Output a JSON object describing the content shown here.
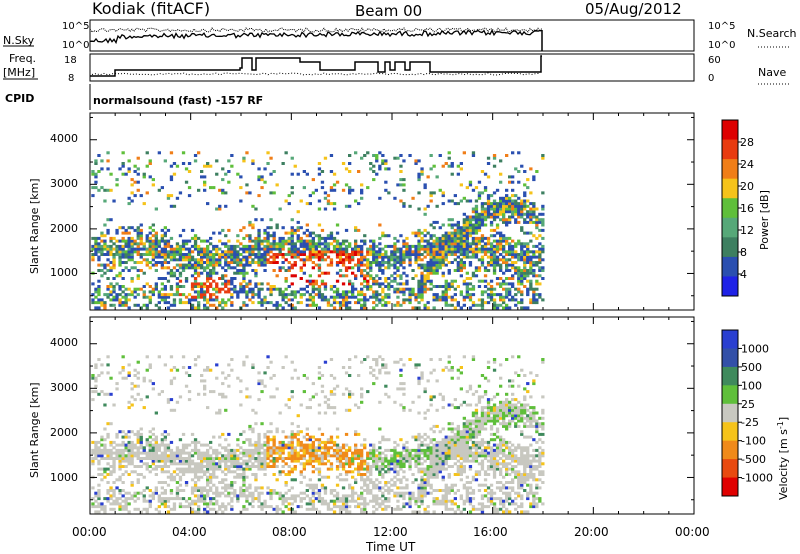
{
  "header": {
    "station": "Kodiak (fitACF)",
    "beam": "Beam 00",
    "date": "05/Aug/2012"
  },
  "panels": {
    "nsky_label": "N.Sky",
    "nsearch_label": "N.Search",
    "nsky_ticks": [
      "10^5",
      "10^0"
    ],
    "nsky_right_ticks": [
      "10^5",
      "10^0"
    ],
    "freq_label_1": "Freq.",
    "freq_label_2": "[MHz]",
    "freq_ticks": [
      "18",
      "8"
    ],
    "nave_ticks": [
      "60",
      "0"
    ],
    "nave_label": "Nave",
    "cpid_label": "CPID",
    "cpid_text": "normalsound (fast) -157 RF"
  },
  "colors": {
    "power_scale": [
      "#1f22e6",
      "#2a4fb0",
      "#3d7f60",
      "#56a878",
      "#5fbf3a",
      "#f5c31a",
      "#f07e18",
      "#e83b10",
      "#dd0000"
    ],
    "velocity_scale": [
      "#2a3fd0",
      "#3350a8",
      "#3f8a5c",
      "#5fbf3a",
      "#c8c8c0",
      "#f5c31a",
      "#f08a1a",
      "#e84a10",
      "#e00000"
    ]
  },
  "chart_data": [
    {
      "type": "heatmap",
      "name": "power",
      "ylabel": "Slant Range [km]",
      "colorbar_label": "Power [dB]",
      "colorbar_ticks": [
        "28",
        "24",
        "20",
        "16",
        "12",
        "8",
        "4"
      ],
      "yticks": [
        "4000",
        "3000",
        "2000",
        "1000"
      ],
      "ylim": [
        180,
        4600
      ],
      "xlim": [
        0,
        24
      ]
    },
    {
      "type": "heatmap",
      "name": "velocity",
      "ylabel": "Slant Range [km]",
      "colorbar_label": "Velocity [m s^-1]",
      "colorbar_ticks": [
        "1000",
        "500",
        "100",
        "25",
        "-25",
        "-100",
        "-500",
        "-1000"
      ],
      "yticks": [
        "4000",
        "3000",
        "2000",
        "1000"
      ],
      "ylim": [
        180,
        4600
      ],
      "xlim": [
        0,
        24
      ]
    }
  ],
  "xaxis": {
    "ticks": [
      "00:00",
      "04:00",
      "08:00",
      "12:00",
      "16:00",
      "20:00",
      "00:00"
    ],
    "label": "Time UT"
  }
}
